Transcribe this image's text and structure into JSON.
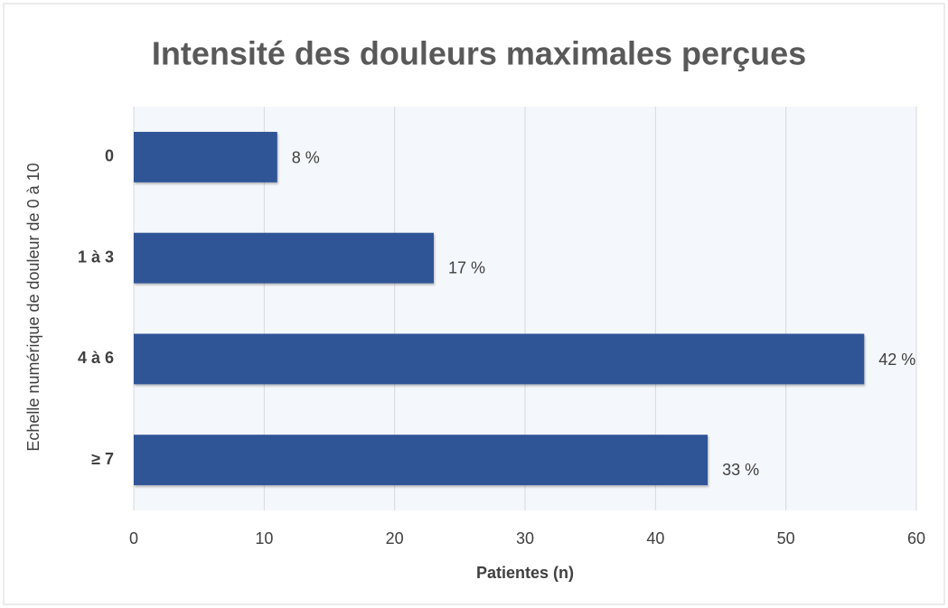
{
  "chart_data": {
    "type": "bar",
    "orientation": "horizontal",
    "title": "Intensité des douleurs maximales perçues",
    "x_label": "Patientes (n)",
    "y_label": "Echelle numérique de douleur de 0 à 10",
    "categories": [
      "0",
      "1 à 3",
      "4 à 6",
      "≥ 7"
    ],
    "values": [
      11,
      23,
      56,
      44
    ],
    "percent_labels": [
      "8 %",
      "17 %",
      "42 %",
      "33 %"
    ],
    "color": "#2f5597",
    "xlim": [
      0,
      60
    ],
    "xticks": [
      0,
      10,
      20,
      30,
      40,
      50,
      60
    ],
    "grid": true
  }
}
